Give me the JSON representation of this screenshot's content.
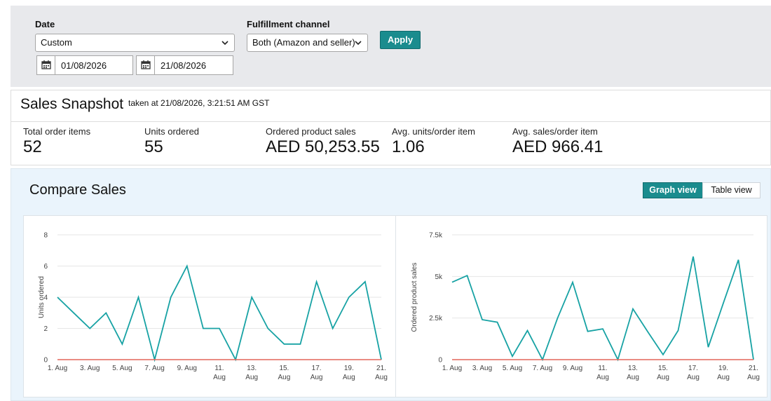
{
  "filters": {
    "date_label": "Date",
    "date_range_value": "Custom",
    "start_date": "01/08/2026",
    "end_date": "21/08/2026",
    "fulfillment_label": "Fulfillment channel",
    "fulfillment_value": "Both (Amazon and seller)",
    "apply_label": "Apply"
  },
  "snapshot": {
    "title": "Sales Snapshot",
    "taken_at": "taken at 21/08/2026, 3:21:51 AM GST",
    "metrics": [
      {
        "label": "Total order items",
        "value": "52"
      },
      {
        "label": "Units ordered",
        "value": "55"
      },
      {
        "label": "Ordered product sales",
        "value": "AED 50,253.55"
      },
      {
        "label": "Avg. units/order item",
        "value": "1.06"
      },
      {
        "label": "Avg. sales/order item",
        "value": "AED 966.41"
      }
    ]
  },
  "compare": {
    "title": "Compare Sales",
    "graph_view_label": "Graph view",
    "table_view_label": "Table view",
    "active_view": "graph"
  },
  "colors": {
    "accent": "#1a8c8e",
    "series_primary": "#17a2a4",
    "series_baseline": "#e3665a"
  },
  "chart_data": [
    {
      "type": "line",
      "ylabel": "Units ordered",
      "ylim": [
        0,
        8
      ],
      "yticks": [
        0,
        2,
        4,
        6,
        8
      ],
      "ytick_labels": [
        "0",
        "2",
        "4",
        "6",
        "8"
      ],
      "x": [
        "1. Aug",
        "2. Aug",
        "3. Aug",
        "4. Aug",
        "5. Aug",
        "6. Aug",
        "7. Aug",
        "8. Aug",
        "9. Aug",
        "10. Aug",
        "11. Aug",
        "12. Aug",
        "13. Aug",
        "14. Aug",
        "15. Aug",
        "16. Aug",
        "17. Aug",
        "18. Aug",
        "19. Aug",
        "20. Aug",
        "21. Aug"
      ],
      "xtick_labels": [
        {
          "line1": "1. Aug",
          "line2": ""
        },
        {
          "line1": "3. Aug",
          "line2": ""
        },
        {
          "line1": "5. Aug",
          "line2": ""
        },
        {
          "line1": "7. Aug",
          "line2": ""
        },
        {
          "line1": "9. Aug",
          "line2": ""
        },
        {
          "line1": "11.",
          "line2": "Aug"
        },
        {
          "line1": "13.",
          "line2": "Aug"
        },
        {
          "line1": "15.",
          "line2": "Aug"
        },
        {
          "line1": "17.",
          "line2": "Aug"
        },
        {
          "line1": "19.",
          "line2": "Aug"
        },
        {
          "line1": "21.",
          "line2": "Aug"
        }
      ],
      "series": [
        {
          "values": [
            4,
            3,
            2,
            3,
            1,
            4,
            0,
            4,
            6,
            2,
            2,
            0,
            4,
            2,
            1,
            1,
            5,
            2,
            4,
            5,
            0
          ]
        },
        {
          "values": [
            0,
            0,
            0,
            0,
            0,
            0,
            0,
            0,
            0,
            0,
            0,
            0,
            0,
            0,
            0,
            0,
            0,
            0,
            0,
            0,
            0
          ]
        }
      ]
    },
    {
      "type": "line",
      "ylabel": "Ordered product sales",
      "ylim": [
        0,
        7500
      ],
      "yticks": [
        0,
        2500,
        5000,
        7500
      ],
      "ytick_labels": [
        "0",
        "2.5k",
        "5k",
        "7.5k"
      ],
      "x": [
        "1. Aug",
        "2. Aug",
        "3. Aug",
        "4. Aug",
        "5. Aug",
        "6. Aug",
        "7. Aug",
        "8. Aug",
        "9. Aug",
        "10. Aug",
        "11. Aug",
        "12. Aug",
        "13. Aug",
        "14. Aug",
        "15. Aug",
        "16. Aug",
        "17. Aug",
        "18. Aug",
        "19. Aug",
        "20. Aug",
        "21. Aug"
      ],
      "xtick_labels": [
        {
          "line1": "1. Aug",
          "line2": ""
        },
        {
          "line1": "3. Aug",
          "line2": ""
        },
        {
          "line1": "5. Aug",
          "line2": ""
        },
        {
          "line1": "7. Aug",
          "line2": ""
        },
        {
          "line1": "9. Aug",
          "line2": ""
        },
        {
          "line1": "11.",
          "line2": "Aug"
        },
        {
          "line1": "13.",
          "line2": "Aug"
        },
        {
          "line1": "15.",
          "line2": "Aug"
        },
        {
          "line1": "17.",
          "line2": "Aug"
        },
        {
          "line1": "19.",
          "line2": "Aug"
        },
        {
          "line1": "21.",
          "line2": "Aug"
        }
      ],
      "series": [
        {
          "values": [
            4650,
            5050,
            2400,
            2250,
            200,
            1750,
            0,
            2500,
            4650,
            1700,
            1850,
            0,
            3050,
            1650,
            300,
            1750,
            6200,
            750,
            3400,
            6000,
            0
          ]
        },
        {
          "values": [
            0,
            0,
            0,
            0,
            0,
            0,
            0,
            0,
            0,
            0,
            0,
            0,
            0,
            0,
            0,
            0,
            0,
            0,
            0,
            0,
            0
          ]
        }
      ]
    }
  ]
}
